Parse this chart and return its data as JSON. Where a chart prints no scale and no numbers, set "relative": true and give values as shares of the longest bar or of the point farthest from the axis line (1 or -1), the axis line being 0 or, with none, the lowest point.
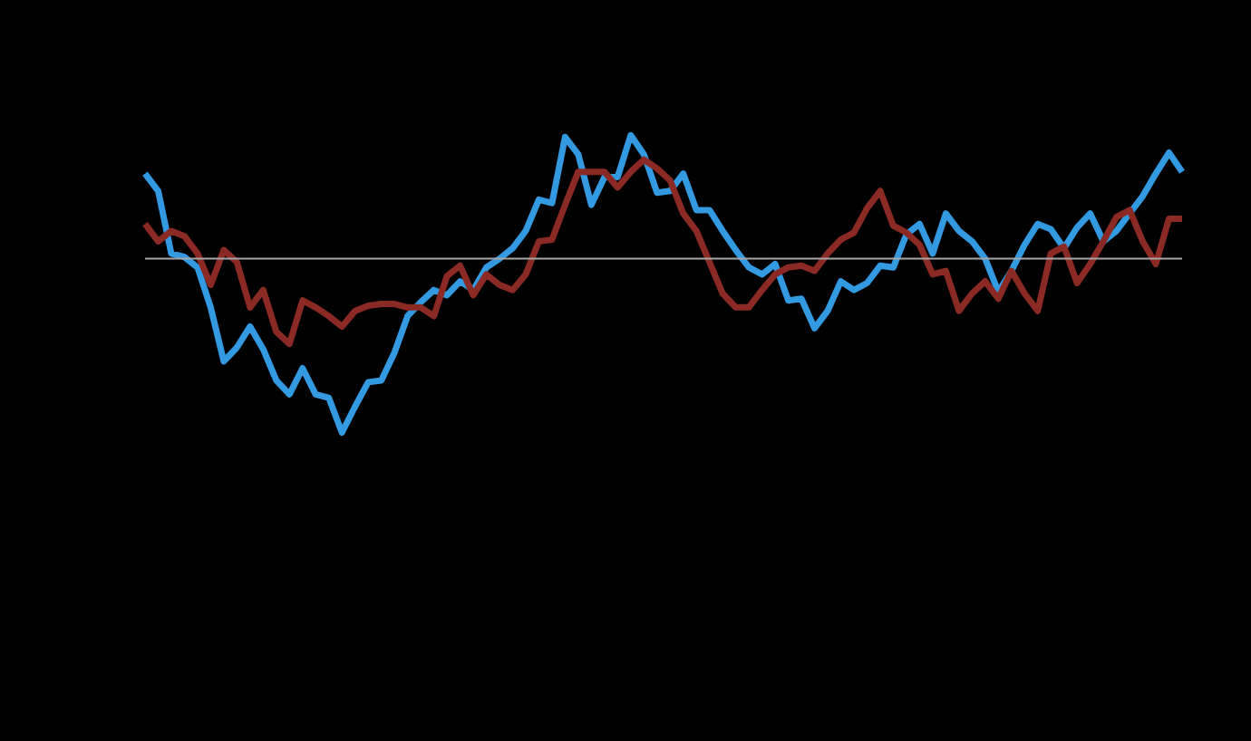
{
  "chart_data": {
    "type": "line",
    "relative": true,
    "categories": [
      null,
      null,
      null,
      null,
      null,
      null,
      null,
      null,
      null,
      null,
      null,
      null,
      null,
      null,
      null,
      null,
      null,
      null,
      null,
      null,
      null,
      null,
      null,
      null,
      null,
      null,
      null,
      null,
      null,
      null,
      null,
      null,
      null,
      null,
      null,
      null,
      null,
      null,
      null,
      null,
      null,
      null,
      null,
      null,
      null,
      null,
      null,
      null,
      null,
      null,
      null,
      null,
      null,
      null,
      null,
      null,
      null,
      null,
      null,
      null,
      null,
      null,
      null,
      null,
      null,
      null,
      null,
      null,
      null,
      null,
      null,
      null,
      null,
      null,
      null,
      null,
      null,
      null,
      null,
      null
    ],
    "series": [
      {
        "color": "#3399e0",
        "values": [
          0.49,
          0.39,
          0.03,
          0.01,
          -0.05,
          -0.28,
          -0.59,
          -0.51,
          -0.39,
          -0.52,
          -0.7,
          -0.78,
          -0.63,
          -0.78,
          -0.8,
          -1,
          -0.85,
          -0.71,
          -0.7,
          -0.54,
          -0.33,
          -0.25,
          -0.18,
          -0.21,
          -0.13,
          -0.18,
          -0.05,
          0,
          0.06,
          0.16,
          0.34,
          0.32,
          0.7,
          0.6,
          0.31,
          0.47,
          0.47,
          0.71,
          0.6,
          0.38,
          0.39,
          0.49,
          0.28,
          0.28,
          0.16,
          0.05,
          -0.05,
          -0.09,
          -0.03,
          -0.24,
          -0.23,
          -0.4,
          -0.3,
          -0.13,
          -0.18,
          -0.14,
          -0.04,
          -0.05,
          0.14,
          0.2,
          0.03,
          0.26,
          0.16,
          0.1,
          0,
          -0.19,
          -0.07,
          0.08,
          0.2,
          0.17,
          0.06,
          0.18,
          0.26,
          0.1,
          0.16,
          0.26,
          0.36,
          0.49,
          0.61,
          0.5
        ]
      },
      {
        "color": "#8b2a24",
        "values": [
          0.2,
          0.1,
          0.16,
          0.13,
          0.03,
          -0.15,
          0.05,
          -0.02,
          -0.28,
          -0.18,
          -0.42,
          -0.49,
          -0.24,
          -0.28,
          -0.33,
          -0.39,
          -0.3,
          -0.27,
          -0.26,
          -0.26,
          -0.28,
          -0.28,
          -0.33,
          -0.1,
          -0.04,
          -0.21,
          -0.09,
          -0.15,
          -0.18,
          -0.09,
          0.1,
          0.11,
          0.31,
          0.5,
          0.5,
          0.5,
          0.41,
          0.5,
          0.57,
          0.52,
          0.45,
          0.26,
          0.16,
          -0.02,
          -0.2,
          -0.28,
          -0.28,
          -0.18,
          -0.09,
          -0.05,
          -0.04,
          -0.07,
          0.03,
          0.11,
          0.15,
          0.29,
          0.39,
          0.19,
          0.15,
          0.08,
          -0.09,
          -0.07,
          -0.3,
          -0.2,
          -0.13,
          -0.23,
          -0.07,
          -0.2,
          -0.3,
          0.03,
          0.07,
          -0.14,
          -0.03,
          0.1,
          0.24,
          0.28,
          0.1,
          -0.03,
          0.23,
          0.23
        ]
      }
    ],
    "ref_lines": [
      {
        "axis": "y",
        "value": 0,
        "color": "#a6a6a6"
      }
    ]
  }
}
